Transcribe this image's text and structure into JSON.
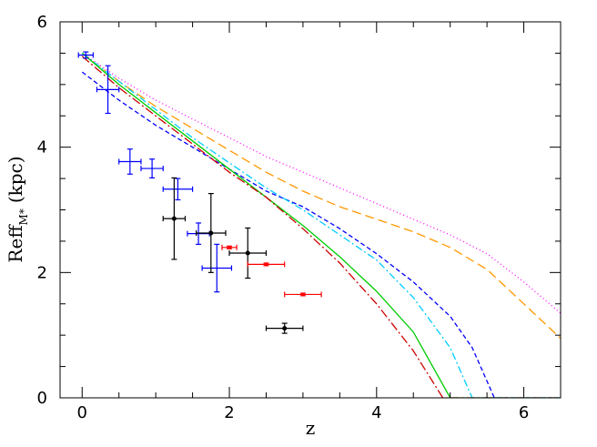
{
  "chart_data": {
    "type": "line",
    "xlabel": "z",
    "ylabel": {
      "main": "Reff",
      "subscript": "M*",
      "unit": "(kpc)"
    },
    "xlim": [
      -0.3,
      6.5
    ],
    "ylim": [
      0,
      6
    ],
    "x_ticks": [
      0,
      2,
      4,
      6
    ],
    "y_ticks": [
      0,
      2,
      4,
      6
    ],
    "x_tick_labels": [
      "0",
      "2",
      "4",
      "6"
    ],
    "y_tick_labels": [
      "0",
      "2",
      "4",
      "6"
    ],
    "grid": false,
    "legend": "none",
    "series": [
      {
        "color": "#ff00ff",
        "dash": "1,3",
        "points": [
          [
            0,
            5.5
          ],
          [
            0.5,
            5.1
          ],
          [
            1,
            4.75
          ],
          [
            1.5,
            4.45
          ],
          [
            2,
            4.15
          ],
          [
            2.5,
            3.85
          ],
          [
            3,
            3.6
          ],
          [
            3.5,
            3.35
          ],
          [
            4,
            3.1
          ],
          [
            4.5,
            2.85
          ],
          [
            5,
            2.6
          ],
          [
            5.5,
            2.3
          ],
          [
            6,
            1.85
          ],
          [
            6.5,
            1.35
          ]
        ]
      },
      {
        "color": "#ff9900",
        "dash": "10,5",
        "points": [
          [
            0,
            5.5
          ],
          [
            0.5,
            5.05
          ],
          [
            1,
            4.65
          ],
          [
            1.5,
            4.3
          ],
          [
            2,
            3.95
          ],
          [
            2.5,
            3.6
          ],
          [
            3,
            3.3
          ],
          [
            3.5,
            3.05
          ],
          [
            4,
            2.85
          ],
          [
            4.5,
            2.65
          ],
          [
            5,
            2.4
          ],
          [
            5.5,
            2.05
          ],
          [
            6,
            1.5
          ],
          [
            6.5,
            0.95
          ]
        ]
      },
      {
        "color": "#0000ff",
        "dash": "5,3",
        "points": [
          [
            0,
            5.2
          ],
          [
            0.5,
            4.75
          ],
          [
            1,
            4.35
          ],
          [
            1.5,
            4.0
          ],
          [
            2,
            3.65
          ],
          [
            2.5,
            3.3
          ],
          [
            3,
            3.05
          ],
          [
            3.5,
            2.7
          ],
          [
            4,
            2.3
          ],
          [
            4.5,
            1.85
          ],
          [
            5,
            1.3
          ],
          [
            5.3,
            0.8
          ],
          [
            5.6,
            0.0
          ],
          [
            6.5,
            0.0
          ]
        ]
      },
      {
        "color": "#00ccff",
        "dash": "8,3,2,3",
        "points": [
          [
            0,
            5.5
          ],
          [
            0.5,
            5.05
          ],
          [
            1,
            4.6
          ],
          [
            1.5,
            4.15
          ],
          [
            2,
            3.75
          ],
          [
            2.5,
            3.35
          ],
          [
            3,
            3.0
          ],
          [
            3.5,
            2.6
          ],
          [
            4,
            2.2
          ],
          [
            4.5,
            1.6
          ],
          [
            5,
            0.8
          ],
          [
            5.3,
            0.0
          ],
          [
            6.5,
            0.0
          ]
        ]
      },
      {
        "color": "#00cc00",
        "dash": "",
        "points": [
          [
            0,
            5.5
          ],
          [
            0.5,
            5.0
          ],
          [
            1,
            4.55
          ],
          [
            1.5,
            4.1
          ],
          [
            2,
            3.65
          ],
          [
            2.5,
            3.2
          ],
          [
            3,
            2.75
          ],
          [
            3.5,
            2.25
          ],
          [
            4,
            1.7
          ],
          [
            4.5,
            1.05
          ],
          [
            5,
            0.0
          ],
          [
            6.5,
            0.0
          ]
        ]
      },
      {
        "color": "#cc0000",
        "dash": "10,3,2,3",
        "points": [
          [
            0,
            5.45
          ],
          [
            0.5,
            4.95
          ],
          [
            1,
            4.5
          ],
          [
            1.5,
            4.05
          ],
          [
            2,
            3.6
          ],
          [
            2.5,
            3.2
          ],
          [
            3,
            2.7
          ],
          [
            3.5,
            2.15
          ],
          [
            4,
            1.5
          ],
          [
            4.5,
            0.75
          ],
          [
            4.9,
            0.0
          ],
          [
            6.5,
            0.0
          ]
        ]
      }
    ],
    "observations": [
      {
        "color": "#0000ff",
        "marker": "cross",
        "points": [
          {
            "x": 0.05,
            "y": 5.47,
            "xerr": 0.1,
            "yerr": 0.05
          },
          {
            "x": 0.35,
            "y": 4.92,
            "xerr": 0.15,
            "yerr": 0.38
          },
          {
            "x": 0.65,
            "y": 3.77,
            "xerr": 0.15,
            "yerr": 0.2
          },
          {
            "x": 0.95,
            "y": 3.66,
            "xerr": 0.15,
            "yerr": 0.15
          },
          {
            "x": 1.3,
            "y": 3.33,
            "xerr": 0.2,
            "yerr": 0.17
          },
          {
            "x": 1.58,
            "y": 2.62,
            "xerr": 0.15,
            "yerr": 0.17
          },
          {
            "x": 1.83,
            "y": 2.07,
            "xerr": 0.2,
            "yerr": 0.38
          }
        ]
      },
      {
        "color": "#000000",
        "marker": "dot",
        "points": [
          {
            "x": 1.25,
            "y": 2.86,
            "xerr": 0.15,
            "yerr": 0.65
          },
          {
            "x": 1.75,
            "y": 2.63,
            "xerr": 0.2,
            "yerr": 0.63
          },
          {
            "x": 2.25,
            "y": 2.31,
            "xerr": 0.25,
            "yerr": 0.4
          },
          {
            "x": 2.75,
            "y": 1.11,
            "xerr": 0.25,
            "yerr": 0.08
          }
        ]
      },
      {
        "color": "#ff0000",
        "marker": "square",
        "points": [
          {
            "x": 2.0,
            "y": 2.4,
            "xerr": 0.1,
            "yerr": 0.02
          },
          {
            "x": 2.5,
            "y": 2.13,
            "xerr": 0.25,
            "yerr": 0.02
          },
          {
            "x": 3.0,
            "y": 1.65,
            "xerr": 0.25,
            "yerr": 0.02
          }
        ]
      }
    ]
  }
}
